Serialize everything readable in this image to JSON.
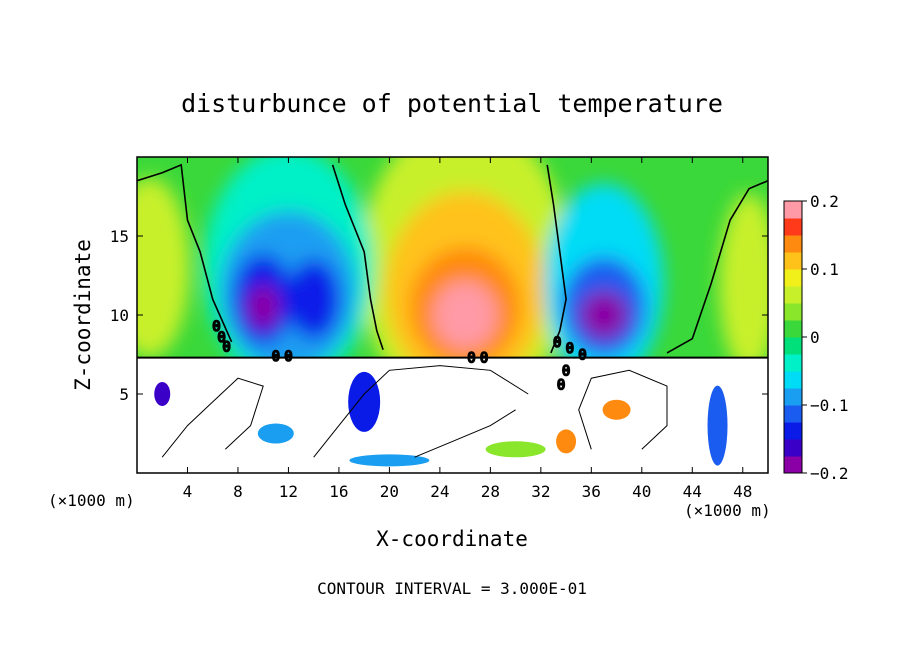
{
  "chart_data": {
    "type": "heatmap",
    "title": "disturbunce of potential temperature",
    "xlabel": "X-coordinate",
    "ylabel": "Z-coordinate",
    "x_unit_left": "(×1000 m)",
    "x_unit_right": "(×1000 m)",
    "xlim": [
      0,
      50
    ],
    "ylim": [
      0,
      20
    ],
    "x_ticks": [
      4,
      8,
      12,
      16,
      20,
      24,
      28,
      32,
      36,
      40,
      44,
      48
    ],
    "y_ticks": [
      5,
      10,
      15
    ],
    "colorbar": {
      "vmin": -0.2,
      "vmax": 0.2,
      "tick_values": [
        0.2,
        0.1,
        0,
        -0.1,
        -0.2
      ],
      "tick_labels": [
        "0.2",
        "0.1",
        "0",
        "−0.1",
        "−0.2"
      ],
      "levels": 16,
      "colors": [
        "#8a00a6",
        "#3a00c8",
        "#0a1be8",
        "#1a5cf0",
        "#1a9ef2",
        "#00dcf6",
        "#00f0c8",
        "#00e07a",
        "#3ad83a",
        "#8ae62a",
        "#c8f02a",
        "#f2f01a",
        "#ffc21a",
        "#ff8a10",
        "#ff3a1a",
        "#ff9aa6"
      ]
    },
    "contour_zero_label": "0",
    "contour_interval_text": "CONTOUR INTERVAL = 3.000E-01",
    "features": [
      {
        "x": 10,
        "z": 11,
        "value": -0.19
      },
      {
        "x": 14,
        "z": 11,
        "value": -0.17
      },
      {
        "x": 26,
        "z": 10,
        "value": 0.2
      },
      {
        "x": 37,
        "z": 10,
        "value": -0.19
      },
      {
        "x": 38,
        "z": 4,
        "value": 0.15
      },
      {
        "x": 34,
        "z": 2,
        "value": 0.15
      }
    ]
  }
}
